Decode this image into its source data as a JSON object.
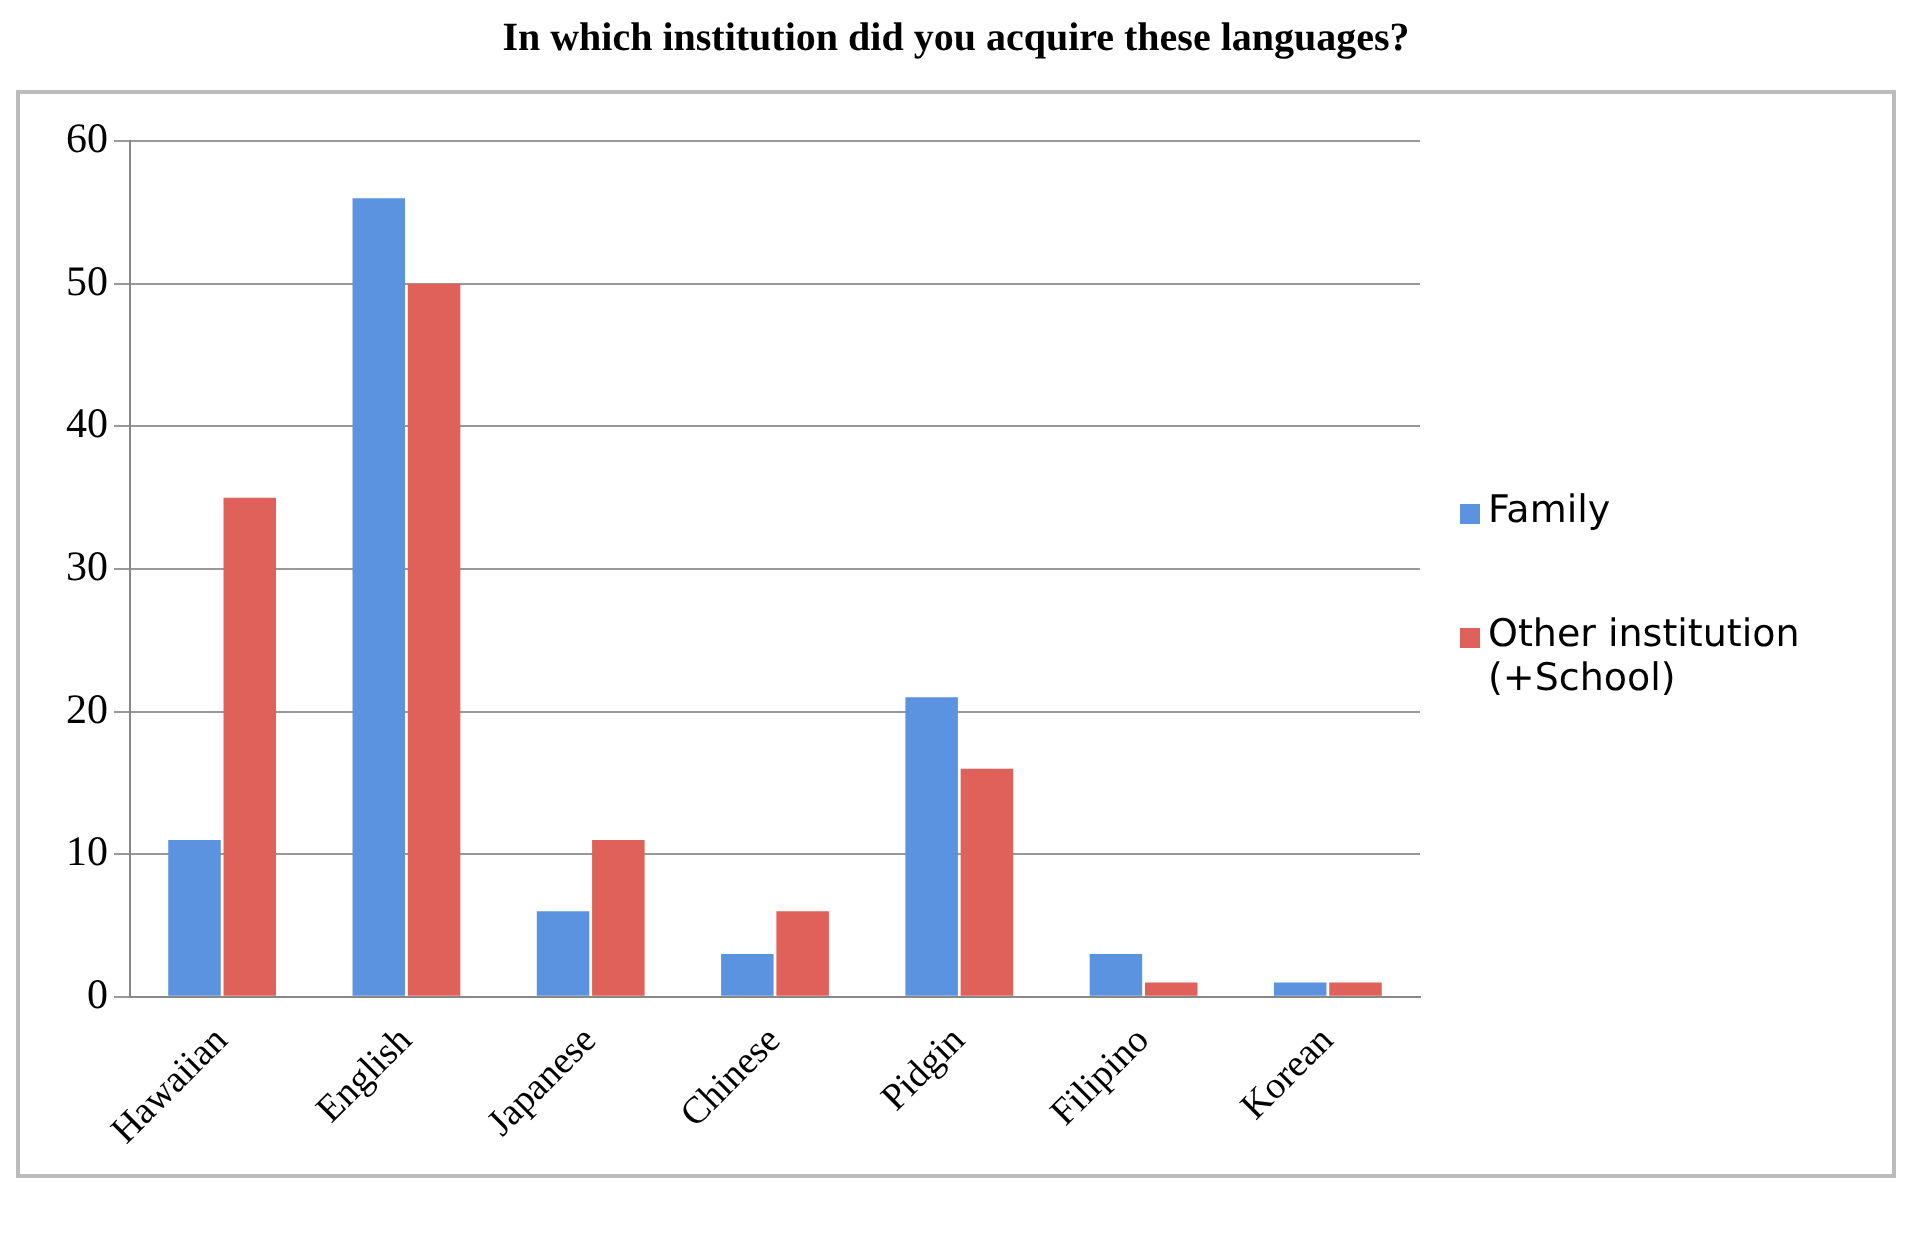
{
  "chart_data": {
    "type": "bar",
    "title": "In which institution did you acquire these languages?",
    "categories": [
      "Hawaiian",
      "English",
      "Japanese",
      "Chinese",
      "Pidgin",
      "Filipino",
      "Korean"
    ],
    "series": [
      {
        "name": "Family",
        "color": "#5b93e0",
        "values": [
          11,
          56,
          6,
          3,
          21,
          3,
          1
        ]
      },
      {
        "name": "Other institution (+School)",
        "color": "#e0605a",
        "values": [
          35,
          50,
          11,
          6,
          16,
          1,
          1
        ]
      }
    ],
    "ylim": [
      0,
      60
    ],
    "yticks": [
      0,
      10,
      20,
      30,
      40,
      50,
      60
    ],
    "grid": "y",
    "legend": "right"
  }
}
